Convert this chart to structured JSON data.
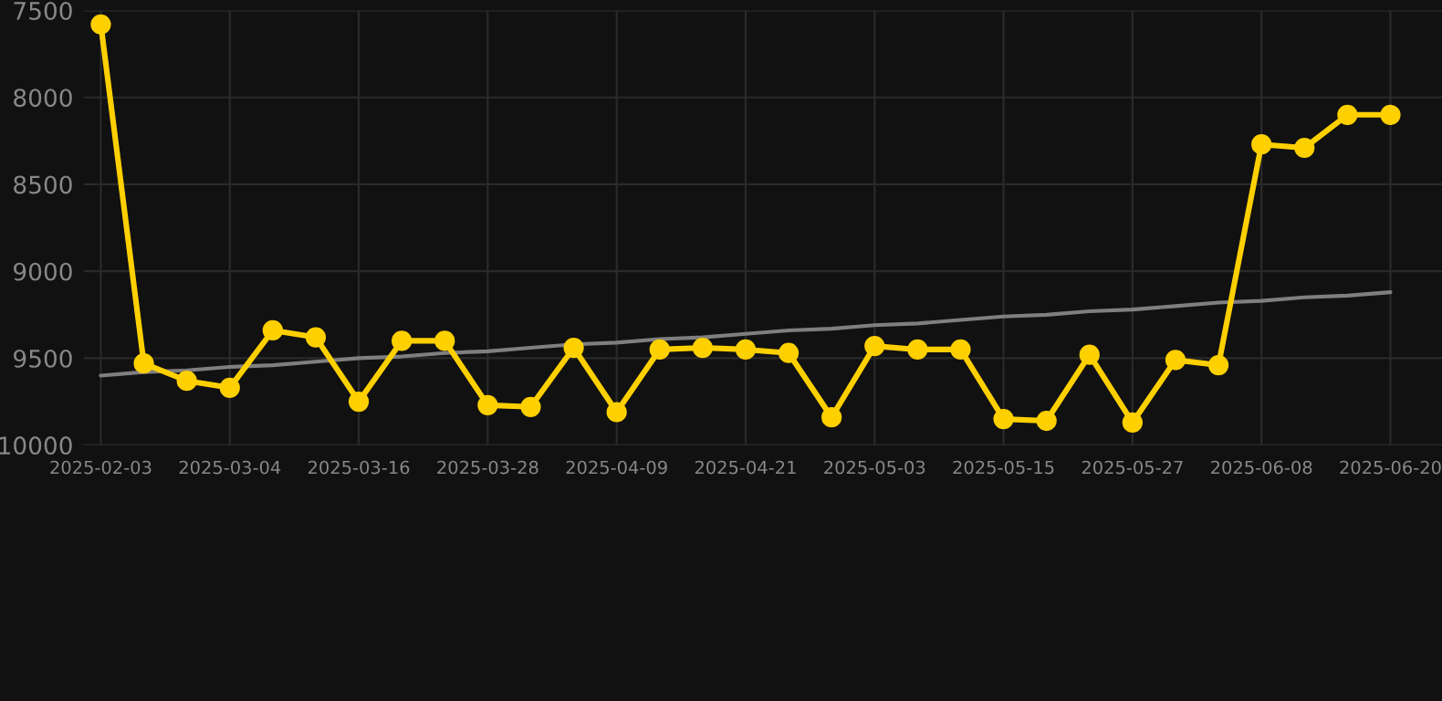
{
  "chart_data": {
    "type": "line",
    "categories": [
      "2025-02-03",
      null,
      null,
      "2025-03-04",
      null,
      null,
      "2025-03-16",
      null,
      null,
      "2025-03-28",
      null,
      null,
      "2025-04-09",
      null,
      null,
      "2025-04-21",
      null,
      null,
      "2025-05-03",
      null,
      null,
      "2025-05-15",
      null,
      null,
      "2025-05-27",
      null,
      null,
      "2025-06-08",
      null,
      null,
      "2025-06-20"
    ],
    "series": [
      {
        "color": "#ffd000",
        "marker": "circle",
        "values": [
          7580,
          9530,
          9630,
          9670,
          9340,
          9380,
          9750,
          9400,
          9400,
          9770,
          9780,
          9440,
          9810,
          9450,
          9440,
          9450,
          9470,
          9840,
          9430,
          9450,
          9450,
          9850,
          9860,
          9480,
          9870,
          9510,
          9540,
          8270,
          8290,
          8100,
          8100
        ]
      },
      {
        "color": "#7f7f7f",
        "marker": "none",
        "values": [
          9600,
          9580,
          9570,
          9550,
          9540,
          9520,
          9500,
          9490,
          9470,
          9460,
          9440,
          9420,
          9410,
          9390,
          9380,
          9360,
          9340,
          9330,
          9310,
          9300,
          9280,
          9260,
          9250,
          9230,
          9220,
          9200,
          9180,
          9170,
          9150,
          9140,
          9120
        ]
      }
    ],
    "ylim": [
      10000,
      7500
    ],
    "yticks": [
      7500,
      8000,
      8500,
      9000,
      9500,
      10000
    ],
    "grid": true,
    "legend": false
  }
}
